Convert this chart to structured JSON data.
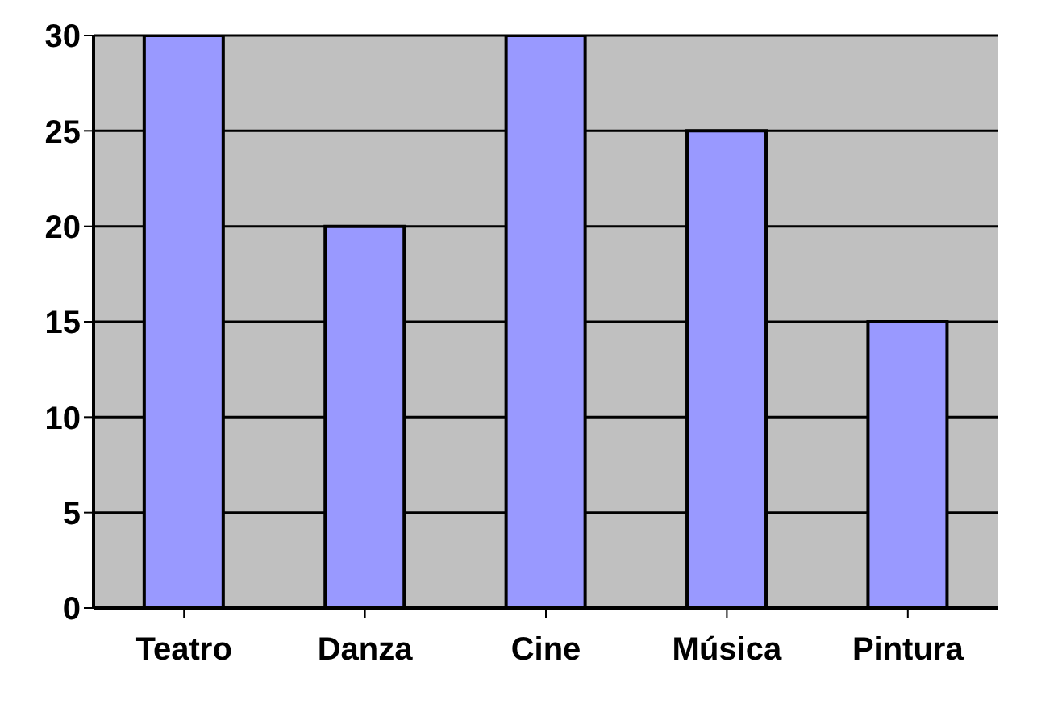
{
  "chart_data": {
    "type": "bar",
    "categories": [
      "Teatro",
      "Danza",
      "Cine",
      "Música",
      "Pintura"
    ],
    "values": [
      30,
      20,
      30,
      25,
      15
    ],
    "color": "#9999ff",
    "ylim": [
      0,
      30
    ],
    "yticks": [
      0,
      5,
      10,
      15,
      20,
      25,
      30
    ],
    "grid": "y"
  }
}
